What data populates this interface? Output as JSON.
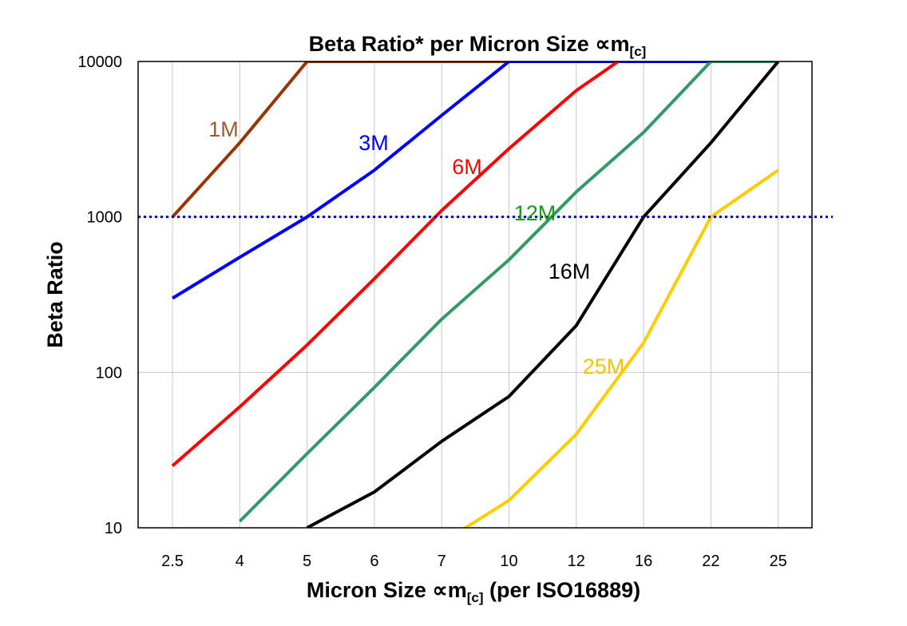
{
  "chart_data": {
    "type": "line",
    "title": "Beta Ratio* per Micron Size ∝m",
    "title_sub": "[c]",
    "xlabel": "Micron Size ∝m",
    "xlabel_sub": "[c]",
    "xlabel_suffix": " (per ISO16889)",
    "ylabel": "Beta Ratio",
    "categories": [
      "2.5",
      "4",
      "5",
      "6",
      "7",
      "10",
      "12",
      "16",
      "22",
      "25"
    ],
    "y_scale": "log",
    "ylim": [
      10,
      10000
    ],
    "yticks": [
      "10",
      "100",
      "1000",
      "10000"
    ],
    "grid": "vertical at categories, horizontal at decades",
    "reference_line": {
      "value": 1000,
      "color": "#0000cc",
      "style": "dotted"
    },
    "series": [
      {
        "name": "1M",
        "color": "#993300",
        "label_color": "#9c5a2e",
        "values": [
          1000,
          3000,
          10000,
          10000,
          10000,
          10000,
          10000,
          10000,
          10000,
          10000
        ]
      },
      {
        "name": "3M",
        "color": "#0000ff",
        "label_color": "#0000ff",
        "values": [
          300,
          550,
          1000,
          2000,
          4500,
          10000,
          10000,
          10000,
          10000,
          10000
        ]
      },
      {
        "name": "6M",
        "color": "#ff0000",
        "label_color": "#ff0000",
        "values": [
          25,
          60,
          150,
          400,
          1100,
          2750,
          6500,
          13000,
          null,
          null
        ]
      },
      {
        "name": "12M",
        "color": "#339966",
        "label_color": "#1a9a1a",
        "values": [
          null,
          11,
          30,
          80,
          220,
          530,
          1450,
          3500,
          10000,
          10000
        ]
      },
      {
        "name": "16M",
        "color": "#000000",
        "label_color": "#000000",
        "values": [
          null,
          null,
          10,
          17,
          36,
          70,
          200,
          1000,
          3000,
          10000
        ]
      },
      {
        "name": "25M",
        "color": "#ffcc00",
        "label_color": "#f5c400",
        "values": [
          null,
          null,
          null,
          null,
          8,
          15,
          40,
          155,
          1000,
          2000
        ]
      }
    ]
  }
}
